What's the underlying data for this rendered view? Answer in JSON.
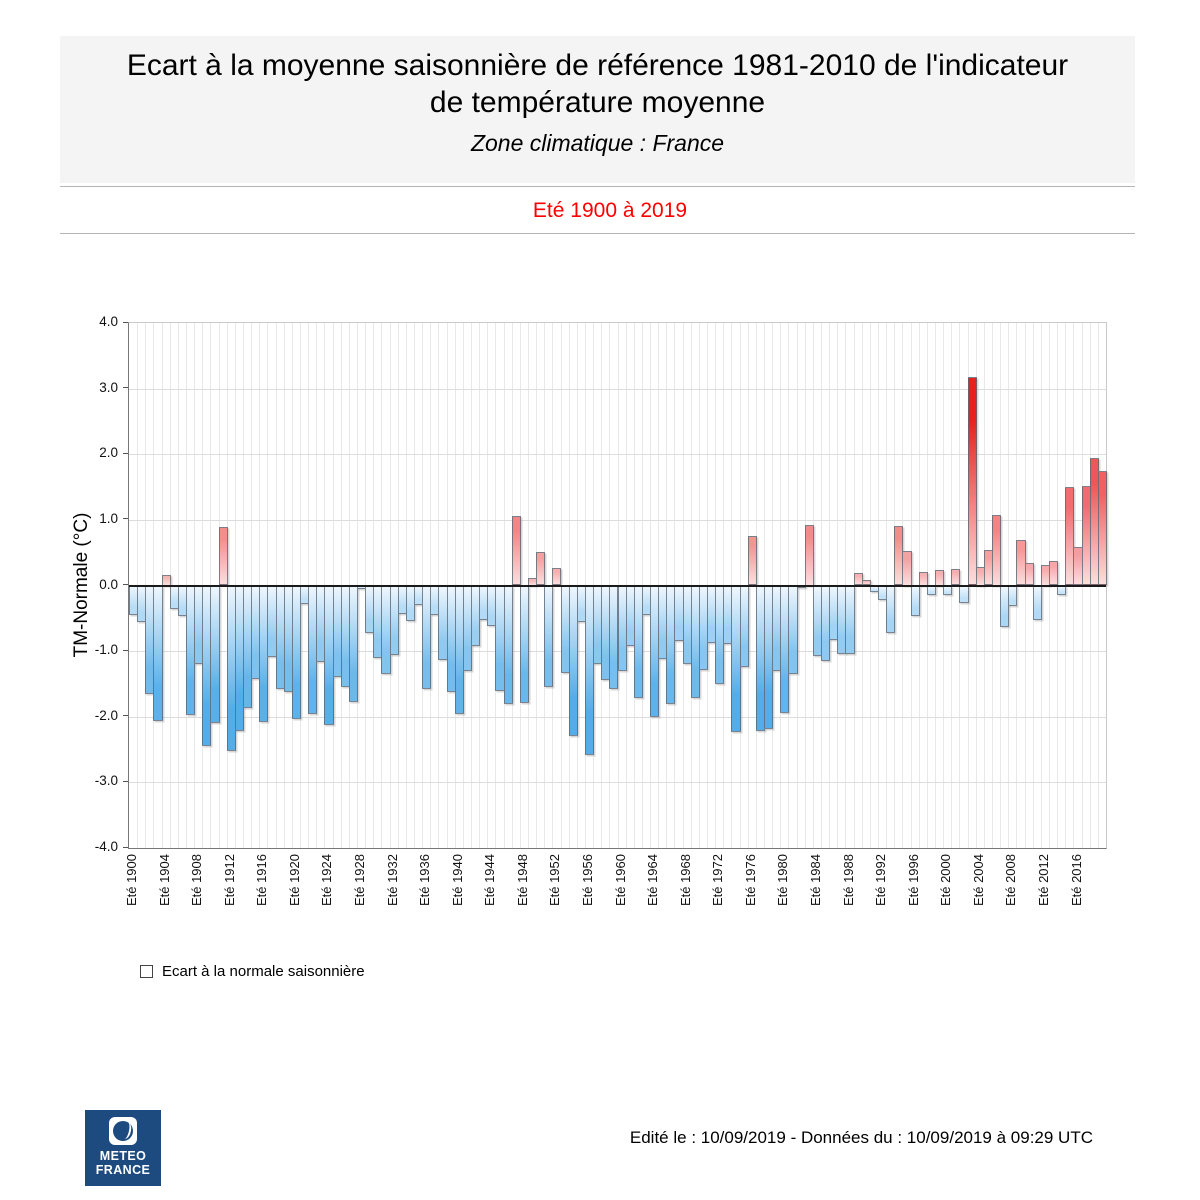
{
  "header": {
    "title_line1": "Ecart à la moyenne saisonnière de référence 1981-2010 de l'indicateur",
    "title_line2": "de température moyenne",
    "subtitle": "Zone climatique : France"
  },
  "period_banner": "Eté 1900 à 2019",
  "chart_data": {
    "type": "bar",
    "title": "Eté 1900 à 2019",
    "ylabel": "TM-Normale (°C)",
    "ylim": [
      -4.0,
      4.0
    ],
    "ystep": 1.0,
    "ytick_labels": [
      "4.0",
      "3.0",
      "2.0",
      "1.0",
      "0.0",
      "-1.0",
      "-2.0",
      "-3.0",
      "-4.0"
    ],
    "grid": true,
    "legend_position": "bottom-left",
    "start_year": 1900,
    "end_year": 2019,
    "xtick_labels": [
      "Eté 1900",
      "Eté 1904",
      "Eté 1908",
      "Eté 1912",
      "Eté 1916",
      "Eté 1920",
      "Eté 1924",
      "Eté 1928",
      "Eté 1932",
      "Eté 1936",
      "Eté 1940",
      "Eté 1944",
      "Eté 1948",
      "Eté 1952",
      "Eté 1956",
      "Eté 1960",
      "Eté 1964",
      "Eté 1968",
      "Eté 1972",
      "Eté 1976",
      "Eté 1980",
      "Eté 1984",
      "Eté 1988",
      "Eté 1992",
      "Eté 1996",
      "Eté 2000",
      "Eté 2004",
      "Eté 2008",
      "Eté 2012",
      "Eté 2016"
    ],
    "xtick_years": [
      1900,
      1904,
      1908,
      1912,
      1916,
      1920,
      1924,
      1928,
      1932,
      1936,
      1940,
      1944,
      1948,
      1952,
      1956,
      1960,
      1964,
      1968,
      1972,
      1976,
      1980,
      1984,
      1988,
      1992,
      1996,
      2000,
      2004,
      2008,
      2012,
      2016
    ],
    "series": [
      {
        "name": "Ecart à la normale saisonnière",
        "values": [
          -0.45,
          -0.56,
          -1.66,
          -2.06,
          0.16,
          -0.36,
          -0.47,
          -1.98,
          -1.2,
          -2.44,
          -2.09,
          0.89,
          -2.52,
          -2.21,
          -1.86,
          -1.43,
          -2.08,
          -1.09,
          -1.57,
          -1.62,
          -2.03,
          -0.28,
          -1.96,
          -1.16,
          -2.13,
          -1.4,
          -1.54,
          -1.78,
          -0.06,
          -0.73,
          -1.11,
          -1.35,
          -1.06,
          -0.44,
          -0.54,
          -0.3,
          -1.57,
          -0.45,
          -1.14,
          -1.63,
          -1.96,
          -1.31,
          -0.92,
          -0.52,
          -0.62,
          -1.6,
          -1.8,
          1.06,
          -1.79,
          0.12,
          0.51,
          -1.55,
          0.26,
          -1.34,
          -2.29,
          -0.55,
          -2.59,
          -1.2,
          -1.44,
          -1.58,
          -1.3,
          -0.92,
          -1.71,
          -0.45,
          -2.0,
          -1.12,
          -1.8,
          -0.84,
          -1.2,
          -1.72,
          -1.28,
          -0.88,
          -1.5,
          -0.89,
          -2.23,
          -1.24,
          0.75,
          -2.21,
          -2.19,
          -1.3,
          -1.94,
          -1.35,
          -0.04,
          0.92,
          -1.07,
          -1.15,
          -0.83,
          -1.04,
          -1.04,
          0.19,
          0.09,
          -0.1,
          -0.22,
          -0.73,
          0.9,
          0.52,
          -0.47,
          0.2,
          -0.15,
          0.24,
          -0.14,
          0.25,
          -0.27,
          3.17,
          0.28,
          0.54,
          1.08,
          -0.63,
          -0.31,
          0.69,
          0.35,
          -0.52,
          0.32,
          0.38,
          -0.14,
          1.5,
          0.59,
          1.51,
          1.95,
          1.74
        ]
      }
    ]
  },
  "legend": {
    "label": "Ecart à la normale saisonnière"
  },
  "footer": {
    "edited_text": "Edité le : 10/09/2019 - Données du : 10/09/2019 à 09:29 UTC",
    "logo_line1": "METEO",
    "logo_line2": "FRANCE"
  },
  "colors": {
    "banner_red": "#ff0000",
    "header_bg": "#f4f4f4",
    "bar_negative_light": "#eef6fd",
    "bar_negative_deep": "#53ade8",
    "bar_positive_light": "#fbdede",
    "bar_positive_deep": "#e82020",
    "bar_border": "#5c6874",
    "zero_line": "#1a1a1a",
    "grid_line": "#dcdcdc",
    "logo_navy": "#1d4b80"
  }
}
